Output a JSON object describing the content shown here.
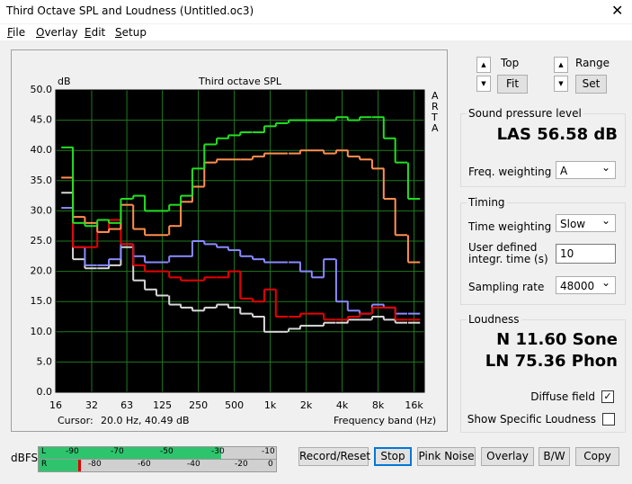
{
  "window": {
    "title": "Third Octave SPL and Loudness (Untitled.oc3)",
    "menu": [
      "File",
      "Overlay",
      "Edit",
      "Setup"
    ]
  },
  "chart_data": {
    "type": "line",
    "step": true,
    "title": "Third octave SPL",
    "y_label": "dB",
    "x_label": "Frequency band (Hz)",
    "logo": "ARTA",
    "cursor_label": "Cursor:",
    "cursor_value": "20.0 Hz, 40.49 dB",
    "x_scale": "log",
    "background": "#000000",
    "grid": true,
    "grid_color": "#1f7a1f",
    "x": [
      20,
      25,
      31.5,
      40,
      50,
      63,
      80,
      100,
      125,
      160,
      200,
      250,
      315,
      400,
      500,
      630,
      800,
      1000,
      1250,
      1600,
      2000,
      2500,
      3150,
      4000,
      5000,
      6300,
      8000,
      10000,
      12500,
      16000
    ],
    "xlim": [
      16,
      19500
    ],
    "xticks": [
      16,
      32,
      63,
      125,
      250,
      500,
      {
        "value": 1000,
        "label": "1k"
      },
      {
        "value": 2000,
        "label": "2k"
      },
      {
        "value": 4000,
        "label": "4k"
      },
      {
        "value": 8000,
        "label": "8k"
      },
      {
        "value": 16000,
        "label": "16k"
      }
    ],
    "ylim": [
      0,
      50
    ],
    "yticks": [
      {
        "value": 0,
        "label": "0.0"
      },
      {
        "value": 5,
        "label": "5.0"
      },
      {
        "value": 10,
        "label": "10.0"
      },
      {
        "value": 15,
        "label": "15.0"
      },
      {
        "value": 20,
        "label": "20.0"
      },
      {
        "value": 25,
        "label": "25.0"
      },
      {
        "value": 30,
        "label": "30.0"
      },
      {
        "value": 35,
        "label": "35.0"
      },
      {
        "value": 40,
        "label": "40.0"
      },
      {
        "value": 45,
        "label": "45.0"
      },
      {
        "value": 50,
        "label": "50.0"
      }
    ],
    "series": [
      {
        "color": "#d8d8d8",
        "values": [
          33,
          22,
          20.5,
          20.5,
          21,
          24,
          18.5,
          17,
          16,
          14.5,
          14,
          13.5,
          14,
          14.5,
          14,
          13,
          12.5,
          10,
          10,
          10.5,
          11,
          11,
          11.5,
          11.5,
          12,
          12,
          12.5,
          12,
          11.5,
          11.5
        ]
      },
      {
        "color": "#8a8aff",
        "values": [
          30.5,
          24,
          21,
          21,
          22,
          24.5,
          22.5,
          21.5,
          21.5,
          22.5,
          22.5,
          25,
          24.5,
          24,
          23.5,
          22.5,
          22,
          21.5,
          21.5,
          21.5,
          20,
          19,
          22,
          15,
          13.5,
          13,
          14.5,
          14,
          13,
          13
        ]
      },
      {
        "color": "#e80000",
        "values": [
          35.5,
          24,
          24,
          26.5,
          28.5,
          24.5,
          21,
          20,
          20,
          19,
          18.5,
          18.5,
          19,
          19,
          20,
          15.5,
          15,
          17,
          12.5,
          12.5,
          13,
          13,
          12,
          12,
          12.5,
          13,
          14,
          14,
          12,
          12
        ]
      },
      {
        "color": "#ff9050",
        "values": [
          35.5,
          29,
          28,
          26.5,
          27,
          31,
          27,
          26,
          26,
          27.5,
          31.5,
          34,
          38,
          38.5,
          38.5,
          38.5,
          39,
          39.5,
          39.5,
          39.5,
          40,
          40,
          39.5,
          40,
          39,
          38.5,
          37,
          32,
          26,
          21.5
        ]
      },
      {
        "color": "#22e022",
        "values": [
          40.5,
          28,
          27.5,
          28.5,
          28,
          32,
          32.5,
          30,
          30,
          31,
          32.5,
          37,
          41,
          42,
          42.5,
          43,
          43,
          44,
          44.5,
          45,
          45,
          45,
          45,
          45.5,
          45,
          45.5,
          45.5,
          42,
          38,
          32
        ]
      }
    ]
  },
  "controls": {
    "top": "Top",
    "fit": "Fit",
    "range": "Range",
    "set": "Set"
  },
  "spl": {
    "title": "Sound pressure level",
    "reading": "LAS 56.58 dB",
    "weighting_label": "Freq. weighting",
    "weighting": "A"
  },
  "timing": {
    "title": "Timing",
    "time_weighting_label": "Time weighting",
    "time_weighting": "Slow",
    "integration_label": [
      "User defined",
      "integr. time (s)"
    ],
    "integration": "10",
    "rate_label": "Sampling rate",
    "rate": "48000"
  },
  "loudness": {
    "title": "Loudness",
    "n": "N 11.60 Sone",
    "ln": "LN 75.36 Phon",
    "diffuse": "Diffuse field",
    "specific": "Show Specific Loudness"
  },
  "meter": {
    "label": "dBFS",
    "left": "L",
    "right": "R",
    "top_scale": [
      "-90",
      "-70",
      "-50",
      "-30",
      "-10"
    ],
    "bottom_scale": [
      "-80",
      "-60",
      "-40",
      "-20",
      "0"
    ]
  },
  "buttons": [
    "Record/Reset",
    "Stop",
    "Pink Noise",
    "Overlay",
    "B/W",
    "Copy"
  ]
}
